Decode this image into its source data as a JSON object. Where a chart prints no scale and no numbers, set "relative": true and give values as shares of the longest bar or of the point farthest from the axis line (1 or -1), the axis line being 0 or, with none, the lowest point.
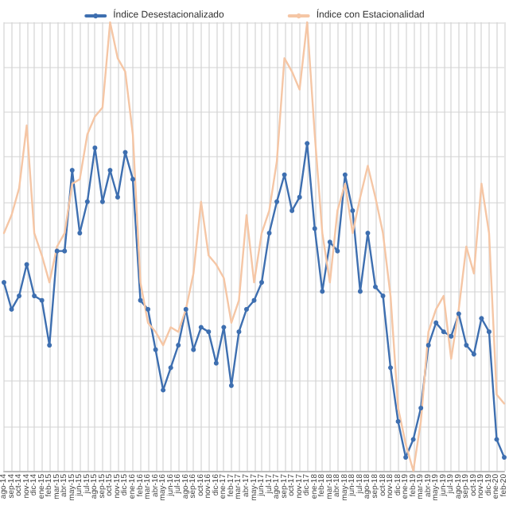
{
  "chart_data": {
    "type": "line",
    "relative": true,
    "grid": true,
    "legend": "top",
    "categories": [
      "ago-14",
      "sep-14",
      "oct-14",
      "nov-14",
      "dic-14",
      "ene-15",
      "feb-15",
      "mar-15",
      "abr-15",
      "may-15",
      "jun-15",
      "jul-15",
      "ago-15",
      "sep-15",
      "oct-15",
      "nov-15",
      "dic-15",
      "ene-16",
      "feb-16",
      "mar-16",
      "abr-16",
      "may-16",
      "jun-16",
      "jul-16",
      "ago-16",
      "sep-16",
      "oct-16",
      "nov-16",
      "dic-16",
      "ene-17",
      "feb-17",
      "mar-17",
      "abr-17",
      "may-17",
      "jun-17",
      "jul-17",
      "ago-17",
      "sep-17",
      "oct-17",
      "nov-17",
      "dic-17",
      "ene-18",
      "feb-18",
      "mar-18",
      "abr-18",
      "may-18",
      "jun-18",
      "jul-18",
      "ago-18",
      "sep-18",
      "oct-18",
      "nov-18",
      "dic-18",
      "ene-19",
      "feb-19",
      "mar-19",
      "abr-19",
      "may-19",
      "jun-19",
      "jul-19",
      "ago-19",
      "sep-19",
      "oct-19",
      "nov-19",
      "dic-19",
      "ene-20",
      "feb-20"
    ],
    "series": [
      {
        "name": "Índice Desestacionalizado",
        "color": "#3e6fb0",
        "marker": "circle",
        "values": [
          0.42,
          0.36,
          0.39,
          0.46,
          0.39,
          0.38,
          0.28,
          0.49,
          0.49,
          0.67,
          0.53,
          0.6,
          0.72,
          0.6,
          0.67,
          0.61,
          0.71,
          0.65,
          0.38,
          0.36,
          0.27,
          0.18,
          0.23,
          0.28,
          0.36,
          0.27,
          0.32,
          0.31,
          0.24,
          0.32,
          0.19,
          0.31,
          0.36,
          0.38,
          0.42,
          0.53,
          0.6,
          0.66,
          0.58,
          0.61,
          0.73,
          0.54,
          0.4,
          0.51,
          0.49,
          0.66,
          0.58,
          0.4,
          0.53,
          0.41,
          0.39,
          0.23,
          0.11,
          0.03,
          0.07,
          0.14,
          0.28,
          0.33,
          0.31,
          0.3,
          0.35,
          0.28,
          0.26,
          0.34,
          0.31,
          0.07,
          0.03
        ]
      },
      {
        "name": "Índice con Estacionalidad",
        "color": "#f5c6a5",
        "marker": "none",
        "values": [
          0.53,
          0.57,
          0.63,
          0.77,
          0.53,
          0.48,
          0.42,
          0.5,
          0.53,
          0.64,
          0.65,
          0.75,
          0.79,
          0.81,
          1,
          0.92,
          0.89,
          0.75,
          0.42,
          0.33,
          0.31,
          0.28,
          0.32,
          0.31,
          0.36,
          0.44,
          0.6,
          0.48,
          0.46,
          0.43,
          0.33,
          0.38,
          0.57,
          0.42,
          0.53,
          0.58,
          0.69,
          0.92,
          0.89,
          0.85,
          1,
          0.75,
          0.53,
          0.42,
          0.58,
          0.64,
          0.53,
          0.61,
          0.68,
          0.61,
          0.53,
          0.39,
          0.14,
          0.06,
          0,
          0.11,
          0.31,
          0.36,
          0.39,
          0.25,
          0.36,
          0.5,
          0.44,
          0.64,
          0.53,
          0.17,
          0.15
        ]
      }
    ]
  }
}
